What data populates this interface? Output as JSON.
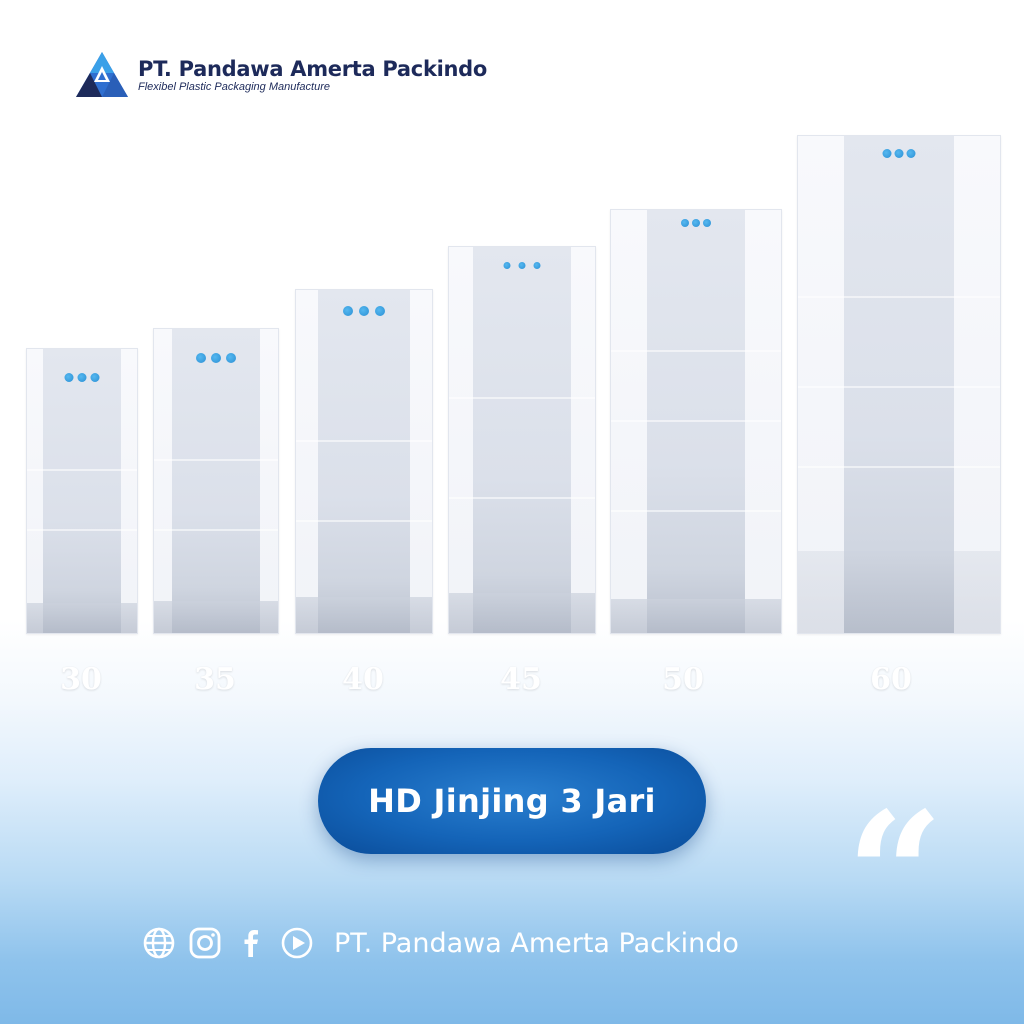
{
  "brand": {
    "name": "PT. Pandawa Amerta Packindo",
    "tagline": "Flexibel Plastic Packaging Manufacture",
    "logo_icon": "triangle-logo-icon",
    "primary_color": "#1d2a5a",
    "accent_color": "#1464b8"
  },
  "bag_sizes": [
    "30",
    "35",
    "40",
    "45",
    "50",
    "60"
  ],
  "title": "HD Jinjing 3 Jari",
  "quote_icon": "quote-mark-icon",
  "footer": {
    "icons": [
      "globe-icon",
      "instagram-icon",
      "facebook-icon",
      "youtube-icon"
    ],
    "text": "PT. Pandawa Amerta Packindo"
  }
}
